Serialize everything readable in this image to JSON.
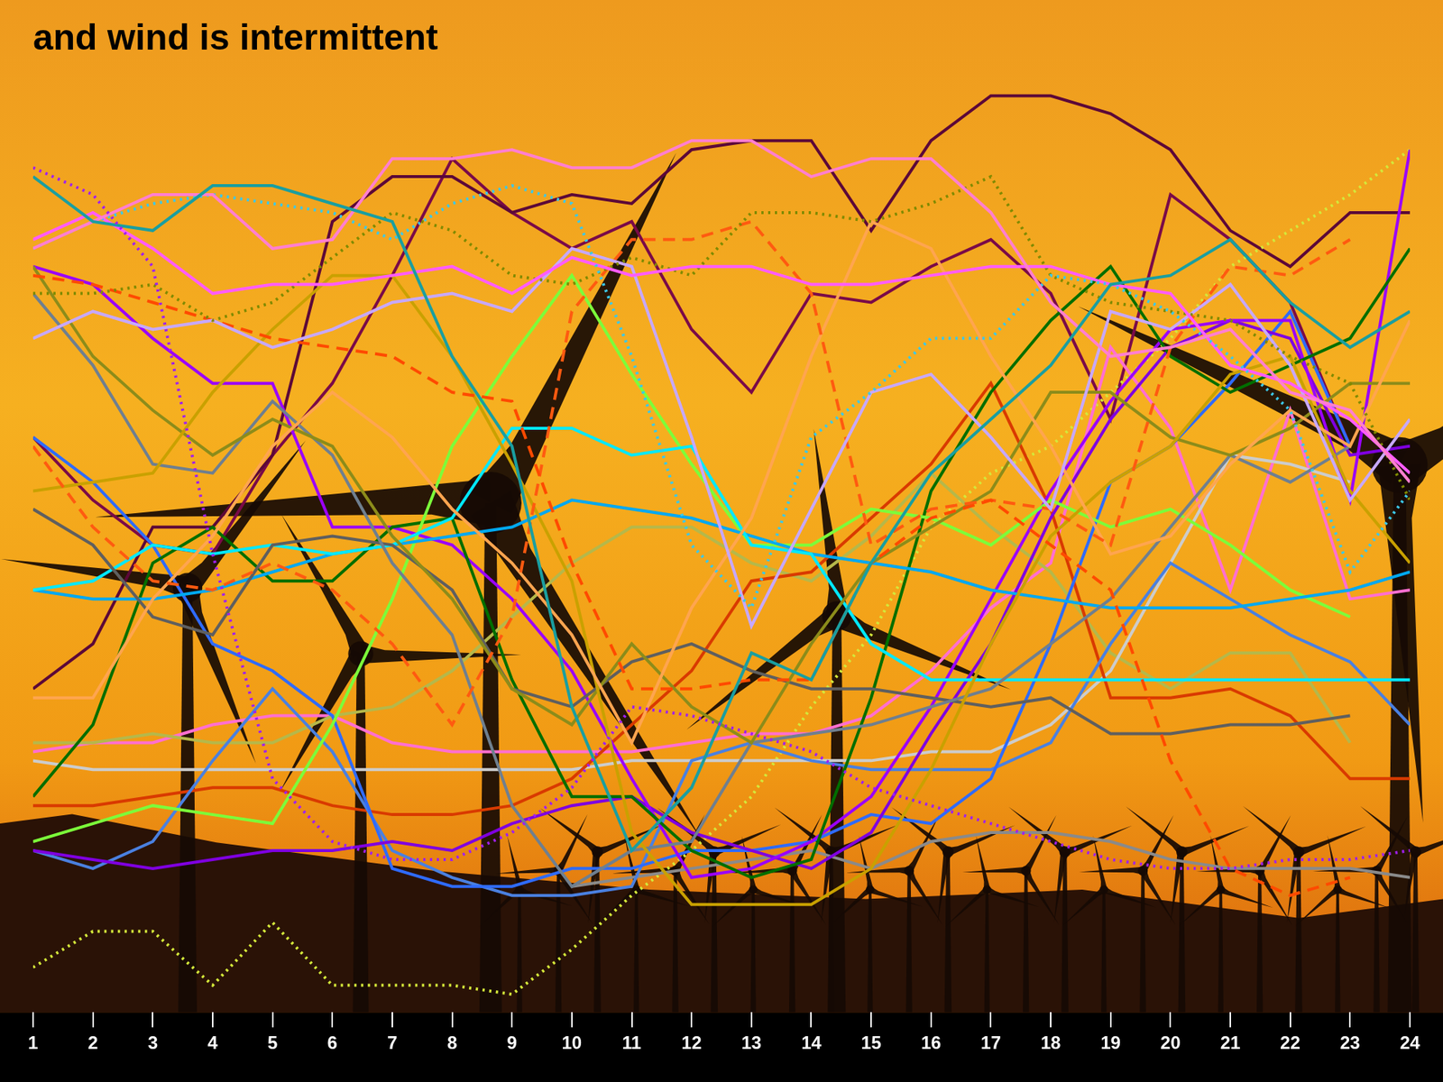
{
  "chart_data": {
    "type": "line",
    "title": "and wind is intermittent",
    "x": [
      1,
      2,
      3,
      4,
      5,
      6,
      7,
      8,
      9,
      10,
      11,
      12,
      13,
      14,
      15,
      16,
      17,
      18,
      19,
      20,
      21,
      22,
      23,
      24
    ],
    "xlim": [
      1,
      24
    ],
    "xticks": [
      1,
      2,
      3,
      4,
      5,
      6,
      7,
      8,
      9,
      10,
      11,
      12,
      13,
      14,
      15,
      16,
      17,
      18,
      19,
      20,
      21,
      22,
      23,
      24
    ],
    "ylim": [
      0,
      105
    ],
    "grid": false,
    "tick_labels": "x",
    "series": [
      {
        "color": "#a020f0",
        "line_style": "dotted",
        "values": [
          94,
          91,
          83,
          51,
          26,
          19,
          17,
          17,
          20,
          25,
          34,
          33,
          31,
          29,
          25,
          23,
          21,
          19,
          17,
          16,
          16,
          17,
          17,
          18
        ]
      },
      {
        "color": "#1a9ea0",
        "line_style": "solid",
        "values": [
          93,
          88,
          87,
          92,
          92,
          90,
          88,
          73,
          63,
          34,
          18,
          25,
          40,
          37,
          50,
          60,
          66,
          72,
          81,
          82,
          86,
          79,
          74,
          78
        ]
      },
      {
        "color": "#ff7fcf",
        "line_style": "solid",
        "values": [
          85,
          88,
          91,
          91,
          85,
          86,
          95,
          95,
          96,
          94,
          94,
          97,
          97,
          93,
          95,
          95,
          89,
          79,
          73,
          74,
          76,
          69,
          67,
          59
        ]
      },
      {
        "color": "#3cc8e8",
        "line_style": "dotted",
        "values": [
          85,
          88,
          90,
          91,
          90,
          89,
          86,
          90,
          92,
          90,
          73,
          52,
          45,
          64,
          69,
          75,
          75,
          82,
          81,
          78,
          73,
          67,
          49,
          58
        ]
      },
      {
        "color": "#ff5cff",
        "line_style": "solid",
        "values": [
          86,
          89,
          85,
          80,
          81,
          81,
          82,
          83,
          80,
          84,
          82,
          83,
          83,
          81,
          81,
          82,
          83,
          83,
          81,
          80,
          72,
          70,
          66,
          60
        ]
      },
      {
        "color": "#7f8a00",
        "line_style": "dotted",
        "values": [
          80,
          80,
          81,
          77,
          79,
          84,
          89,
          87,
          82,
          81,
          84,
          82,
          89,
          89,
          88,
          90,
          93,
          82,
          79,
          78,
          77,
          73,
          70,
          57
        ]
      },
      {
        "color": "#c7a8ff",
        "line_style": "solid",
        "values": [
          75,
          78,
          76,
          77,
          74,
          76,
          79,
          80,
          78,
          85,
          83,
          64,
          43,
          56,
          69,
          71,
          64,
          56,
          78,
          76,
          81,
          72,
          57,
          66
        ]
      },
      {
        "color": "#ff4a00",
        "line_style": "dashed",
        "values": [
          82,
          81,
          79,
          77,
          75,
          74,
          73,
          69,
          68,
          50,
          36,
          36,
          37,
          37,
          50,
          55,
          57,
          52,
          47,
          28,
          16,
          13,
          15,
          null
        ]
      },
      {
        "color": "#ff5a10",
        "line_style": "dashed",
        "values": [
          63,
          54,
          48,
          47,
          50,
          47,
          41,
          32,
          44,
          78,
          86,
          86,
          88,
          80,
          52,
          56,
          57,
          56,
          52,
          74,
          83,
          82,
          86,
          null
        ]
      },
      {
        "color": "#ffa54f",
        "line_style": "solid",
        "values": [
          35,
          35,
          46,
          53,
          63,
          69,
          64,
          56,
          50,
          42,
          30,
          45,
          55,
          73,
          88,
          85,
          73,
          63,
          51,
          53,
          61,
          67,
          63,
          77
        ]
      },
      {
        "color": "#c9a100",
        "line_style": "solid",
        "values": [
          58,
          59,
          60,
          69,
          76,
          82,
          82,
          73,
          61,
          48,
          20,
          12,
          12,
          12,
          16,
          27,
          41,
          53,
          59,
          63,
          71,
          73,
          58,
          50
        ]
      },
      {
        "color": "#8c8c1a",
        "line_style": "solid",
        "values": [
          83,
          73,
          67,
          62,
          66,
          63,
          53,
          46,
          36,
          32,
          41,
          34,
          30,
          41,
          50,
          54,
          58,
          69,
          69,
          64,
          62,
          65,
          70,
          70
        ]
      },
      {
        "color": "#6f7f8f",
        "line_style": "solid",
        "values": [
          80,
          72,
          61,
          60,
          68,
          62,
          50,
          42,
          23,
          14,
          18,
          19,
          30,
          31,
          32,
          34,
          36,
          41,
          46,
          54,
          62,
          59,
          63,
          null
        ]
      },
      {
        "color": "#5f5f5f",
        "line_style": "solid",
        "values": [
          56,
          52,
          44,
          42,
          52,
          53,
          52,
          47,
          36,
          34,
          39,
          41,
          38,
          36,
          36,
          35,
          34,
          35,
          31,
          31,
          32,
          32,
          33,
          null
        ]
      },
      {
        "color": "#00e8ff",
        "line_style": "solid",
        "values": [
          47,
          48,
          52,
          51,
          52,
          51,
          52,
          55,
          65,
          65,
          62,
          63,
          52,
          51,
          41,
          37,
          37,
          37,
          37,
          37,
          37,
          37,
          37,
          37
        ]
      },
      {
        "color": "#00a8f0",
        "line_style": "solid",
        "values": [
          47,
          46,
          46,
          47,
          49,
          51,
          52,
          53,
          54,
          57,
          56,
          55,
          53,
          51,
          50,
          49,
          47,
          46,
          45,
          45,
          45,
          46,
          47,
          49
        ]
      },
      {
        "color": "#7cff3a",
        "line_style": "solid",
        "values": [
          19,
          21,
          23,
          22,
          21,
          32,
          46,
          63,
          73,
          82,
          71,
          61,
          52,
          52,
          56,
          55,
          52,
          57,
          54,
          56,
          52,
          47,
          44,
          null
        ]
      },
      {
        "color": "#006e00",
        "line_style": "solid",
        "values": [
          24,
          32,
          50,
          54,
          48,
          48,
          54,
          55,
          37,
          24,
          24,
          18,
          15,
          17,
          35,
          58,
          69,
          77,
          83,
          73,
          69,
          72,
          75,
          85
        ]
      },
      {
        "color": "#9b00ff",
        "line_style": "solid",
        "values": [
          83,
          81,
          75,
          70,
          70,
          54,
          54,
          52,
          46,
          38,
          26,
          15,
          16,
          19,
          24,
          34,
          46,
          58,
          68,
          76,
          77,
          77,
          57,
          96
        ]
      },
      {
        "color": "#7f00e0",
        "line_style": "solid",
        "values": [
          18,
          17,
          16,
          17,
          18,
          18,
          19,
          18,
          21,
          23,
          24,
          20,
          18,
          16,
          20,
          31,
          41,
          55,
          66,
          74,
          77,
          75,
          62,
          63
        ]
      },
      {
        "color": "#2f6bff",
        "line_style": "solid",
        "values": [
          64,
          59,
          52,
          41,
          38,
          33,
          16,
          14,
          14,
          16,
          16,
          18,
          18,
          19,
          22,
          21,
          26,
          41,
          59,
          63,
          70,
          78,
          63,
          null
        ]
      },
      {
        "color": "#4a80e0",
        "line_style": "solid",
        "values": [
          18,
          16,
          19,
          28,
          36,
          29,
          18,
          15,
          13,
          13,
          14,
          28,
          30,
          28,
          27,
          27,
          27,
          30,
          41,
          50,
          46,
          42,
          39,
          32
        ]
      },
      {
        "color": "#d93a00",
        "line_style": "solid",
        "values": [
          23,
          23,
          24,
          25,
          25,
          23,
          22,
          22,
          23,
          26,
          32,
          38,
          48,
          49,
          55,
          61,
          70,
          56,
          35,
          35,
          36,
          33,
          26,
          26
        ]
      },
      {
        "color": "#cccccc",
        "line_style": "solid",
        "values": [
          28,
          27,
          27,
          27,
          27,
          27,
          27,
          27,
          27,
          27,
          28,
          28,
          28,
          28,
          28,
          29,
          29,
          32,
          38,
          50,
          62,
          61,
          59,
          null
        ]
      },
      {
        "color": "#b5b84a",
        "line_style": "solid",
        "values": [
          30,
          30,
          31,
          30,
          30,
          33,
          34,
          38,
          44,
          50,
          54,
          54,
          50,
          48,
          53,
          60,
          54,
          49,
          40,
          36,
          40,
          40,
          30,
          null
        ]
      },
      {
        "color": "#ff6fd0",
        "line_style": "solid",
        "values": [
          29,
          30,
          30,
          32,
          33,
          33,
          30,
          29,
          29,
          29,
          29,
          30,
          31,
          31,
          33,
          38,
          45,
          50,
          74,
          65,
          47,
          67,
          46,
          47
        ]
      },
      {
        "color": "#8a8a8a",
        "line_style": "solid",
        "values": [
          null,
          null,
          null,
          null,
          null,
          null,
          null,
          null,
          null,
          14,
          15,
          16,
          17,
          18,
          16,
          19,
          20,
          20,
          19,
          17,
          16,
          16,
          16,
          15
        ]
      },
      {
        "color": "#d4e83a",
        "line_style": "dotted",
        "values": [
          5,
          9,
          9,
          3,
          10,
          3,
          3,
          3,
          2,
          7,
          13,
          18,
          24,
          34,
          42,
          54,
          60,
          63,
          69,
          75,
          83,
          87,
          91,
          96
        ]
      },
      {
        "color": "#5c0838",
        "line_style": "solid",
        "values": [
          36,
          41,
          54,
          54,
          62,
          88,
          93,
          93,
          89,
          91,
          90,
          96,
          97,
          97,
          87,
          97,
          102,
          102,
          100,
          96,
          87,
          83,
          89,
          89
        ]
      },
      {
        "color": "#7a0a48",
        "line_style": "solid",
        "values": [
          64,
          57,
          52,
          51,
          62,
          70,
          82,
          95,
          89,
          85,
          88,
          76,
          69,
          80,
          79,
          83,
          86,
          80,
          66,
          91,
          86,
          79,
          63,
          null
        ]
      }
    ]
  }
}
